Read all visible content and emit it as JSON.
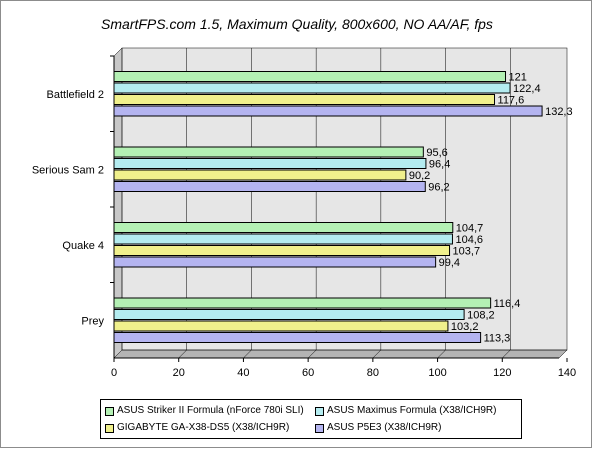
{
  "chart_data": {
    "type": "bar",
    "orientation": "horizontal",
    "title": "SmartFPS.com 1.5, Maximum Quality, 800x600, NO AA/AF, fps",
    "categories": [
      "Battlefield 2",
      "Serious Sam 2",
      "Quake 4",
      "Prey"
    ],
    "series": [
      {
        "name": "ASUS Striker II Formula (nForce 780i SLI)",
        "color": "#b4f0b4",
        "values": [
          121,
          95.6,
          104.7,
          116.4
        ],
        "labels": [
          "121",
          "95,6",
          "104,7",
          "116,4"
        ]
      },
      {
        "name": "ASUS Maximus Formula (X38/ICH9R)",
        "color": "#b4ecf0",
        "values": [
          122.4,
          96.4,
          104.6,
          108.2
        ],
        "labels": [
          "122,4",
          "96,4",
          "104,6",
          "108,2"
        ]
      },
      {
        "name": "GIGABYTE GA-X38-DS5 (X38/ICH9R)",
        "color": "#f0f08c",
        "values": [
          117.6,
          90.2,
          103.7,
          103.2
        ],
        "labels": [
          "117,6",
          "90,2",
          "103,7",
          "103,2"
        ]
      },
      {
        "name": "ASUS P5E3 (X38/ICH9R)",
        "color": "#b4b4f0",
        "values": [
          132.3,
          96.2,
          99.4,
          113.3
        ],
        "labels": [
          "132,3",
          "96,2",
          "99,4",
          "113,3"
        ]
      }
    ],
    "xlim": [
      0,
      140
    ],
    "xticks": [
      "0",
      "20",
      "40",
      "60",
      "80",
      "100",
      "120",
      "140"
    ],
    "grid": true,
    "legend": "bottom"
  }
}
